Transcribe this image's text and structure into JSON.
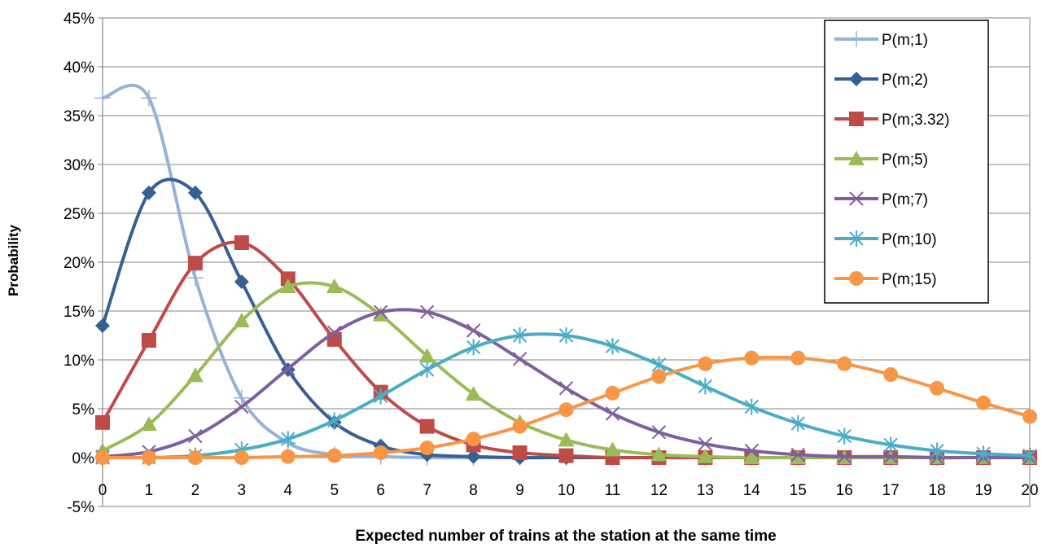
{
  "chart_data": {
    "type": "line",
    "title": "",
    "xlabel": "Expected number of trains at the station at the same time",
    "ylabel": "Probability",
    "x": [
      0,
      1,
      2,
      3,
      4,
      5,
      6,
      7,
      8,
      9,
      10,
      11,
      12,
      13,
      14,
      15,
      16,
      17,
      18,
      19,
      20
    ],
    "xlim": [
      0,
      20
    ],
    "ylim": [
      -5,
      45
    ],
    "y_ticks": [
      -5,
      0,
      5,
      10,
      15,
      20,
      25,
      30,
      35,
      40,
      45
    ],
    "y_tick_labels": [
      "-5%",
      "0%",
      "5%",
      "10%",
      "15%",
      "20%",
      "25%",
      "30%",
      "35%",
      "40%",
      "45%"
    ],
    "x_tick_labels": [
      "0",
      "1",
      "2",
      "3",
      "4",
      "5",
      "6",
      "7",
      "8",
      "9",
      "10",
      "11",
      "12",
      "13",
      "14",
      "15",
      "16",
      "17",
      "18",
      "19",
      "20"
    ],
    "grid": true,
    "smooth": true,
    "legend_position": "top-right",
    "series": [
      {
        "name": "P(m;1)",
        "color": "#95B3D7",
        "marker": "plus",
        "values": [
          36.8,
          36.8,
          18.4,
          6.1,
          1.5,
          0.3,
          0.1,
          0,
          0,
          0,
          0,
          0,
          0,
          0,
          0,
          0,
          0,
          0,
          0,
          0,
          0
        ]
      },
      {
        "name": "P(m;2)",
        "color": "#376092",
        "marker": "diamond",
        "values": [
          13.5,
          27.1,
          27.1,
          18.0,
          9.0,
          3.6,
          1.2,
          0.3,
          0.1,
          0,
          0,
          0,
          0,
          0,
          0,
          0,
          0,
          0,
          0,
          0,
          0
        ]
      },
      {
        "name": "P(m;3.32)",
        "color": "#BE4B48",
        "marker": "square",
        "values": [
          3.6,
          12.0,
          19.9,
          22.0,
          18.3,
          12.1,
          6.7,
          3.2,
          1.3,
          0.5,
          0.2,
          0,
          0,
          0,
          0,
          0,
          0,
          0,
          0,
          0,
          0
        ]
      },
      {
        "name": "P(m;5)",
        "color": "#9BBB59",
        "marker": "triangle",
        "values": [
          0.7,
          3.4,
          8.4,
          14.0,
          17.5,
          17.5,
          14.6,
          10.4,
          6.5,
          3.6,
          1.8,
          0.8,
          0.3,
          0.1,
          0,
          0,
          0,
          0,
          0,
          0,
          0
        ]
      },
      {
        "name": "P(m;7)",
        "color": "#7F5F9F",
        "marker": "x",
        "values": [
          0.1,
          0.6,
          2.2,
          5.2,
          9.1,
          12.8,
          14.9,
          14.9,
          13.0,
          10.1,
          7.1,
          4.5,
          2.6,
          1.4,
          0.7,
          0.3,
          0.1,
          0.1,
          0,
          0,
          0
        ]
      },
      {
        "name": "P(m;10)",
        "color": "#4BACC6",
        "marker": "star",
        "values": [
          0,
          0,
          0.2,
          0.8,
          1.9,
          3.8,
          6.3,
          9.0,
          11.3,
          12.5,
          12.5,
          11.4,
          9.5,
          7.3,
          5.2,
          3.5,
          2.2,
          1.3,
          0.7,
          0.4,
          0.2
        ]
      },
      {
        "name": "P(m;15)",
        "color": "#F79646",
        "marker": "circle",
        "values": [
          0,
          0,
          0,
          0,
          0.1,
          0.2,
          0.5,
          1.0,
          1.9,
          3.2,
          4.9,
          6.6,
          8.3,
          9.6,
          10.2,
          10.2,
          9.6,
          8.5,
          7.1,
          5.6,
          4.2
        ]
      }
    ]
  }
}
